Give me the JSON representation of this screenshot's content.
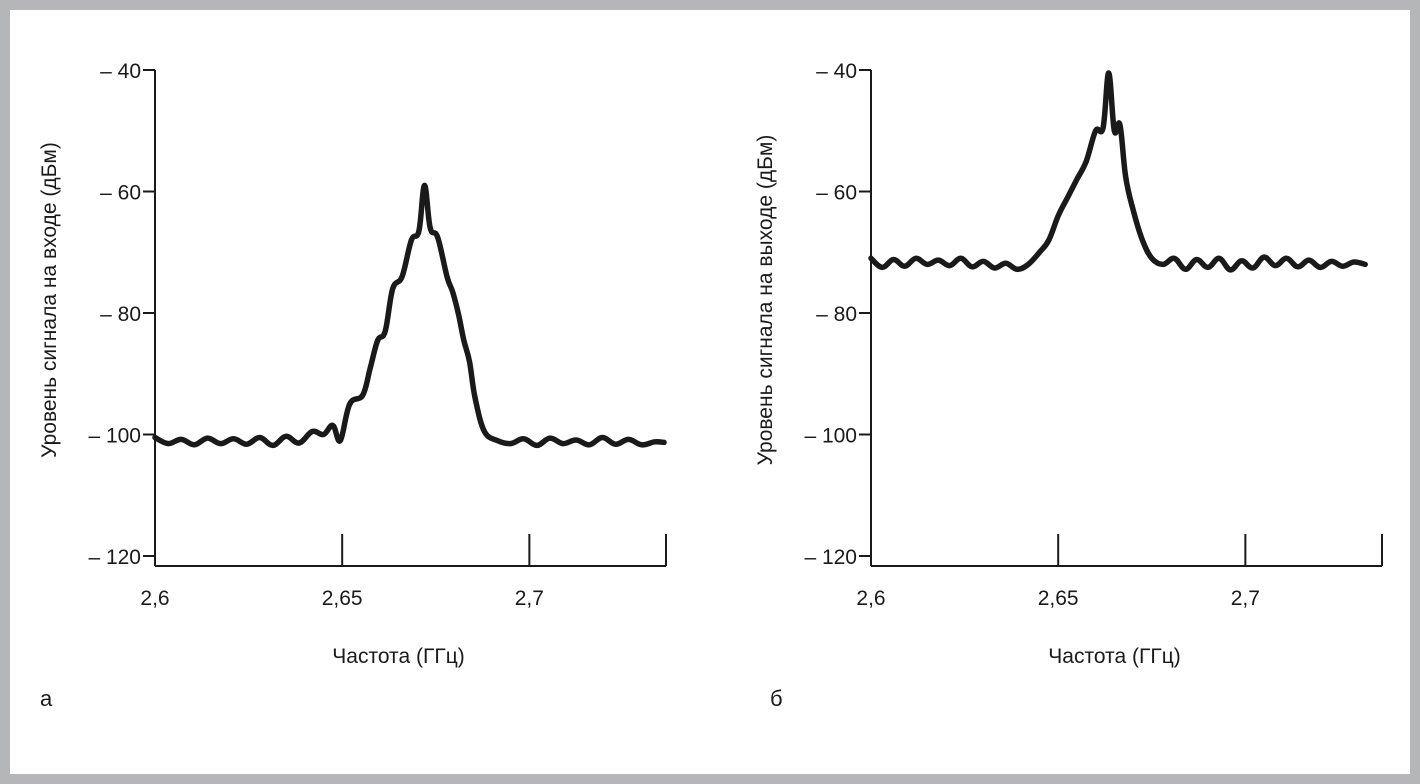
{
  "figure": {
    "panels": [
      {
        "letter": "а"
      },
      {
        "letter": "б"
      }
    ]
  },
  "chart_data": [
    {
      "type": "line",
      "title": "",
      "xlabel": "Частота (ГГц)",
      "ylabel": "Уровень сигнала на входе (дБм)",
      "xlim": [
        2.6,
        2.7365
      ],
      "ylim": [
        -120,
        -40
      ],
      "xticks": [
        2.6,
        2.65,
        2.7
      ],
      "xtick_labels": [
        "2,6",
        "2,65",
        "2,7"
      ],
      "yticks": [
        -40,
        -60,
        -80,
        -100,
        -120
      ],
      "ytick_labels": [
        "– 40",
        "– 60",
        "– 80",
        "– 100",
        "– 120"
      ],
      "grid": false,
      "legend": "none",
      "color": "#1a1a1a",
      "series": [
        {
          "x": [
            2.6,
            2.6035,
            2.607,
            2.6105,
            2.614,
            2.6175,
            2.621,
            2.6245,
            2.628,
            2.6315,
            2.635,
            2.6385,
            2.642,
            2.645,
            2.6475,
            2.6495,
            2.652,
            2.6555,
            2.6575,
            2.6595,
            2.6615,
            2.6635,
            2.666,
            2.6685,
            2.6705,
            2.672,
            2.6735,
            2.6755,
            2.678,
            2.6795,
            2.681,
            2.6825,
            2.684,
            2.6855,
            2.688,
            2.6915,
            2.695,
            2.6985,
            2.702,
            2.7055,
            2.709,
            2.7125,
            2.716,
            2.7195,
            2.723,
            2.7265,
            2.73,
            2.7335,
            2.736
          ],
          "y": [
            -100.5,
            -101.5,
            -100.8,
            -101.7,
            -100.6,
            -101.5,
            -100.7,
            -101.6,
            -100.5,
            -101.8,
            -100.3,
            -101.4,
            -99.5,
            -100.0,
            -98.5,
            -101.0,
            -95.0,
            -93.5,
            -89.0,
            -84.5,
            -83.0,
            -76.0,
            -74.0,
            -68.0,
            -66.5,
            -59.0,
            -66.0,
            -67.5,
            -74.0,
            -76.5,
            -80.0,
            -84.5,
            -88.0,
            -94.0,
            -99.5,
            -101.0,
            -101.5,
            -100.7,
            -101.8,
            -100.6,
            -101.5,
            -100.9,
            -101.7,
            -100.5,
            -101.6,
            -100.8,
            -101.7,
            -101.2,
            -101.3
          ]
        }
      ]
    },
    {
      "type": "line",
      "title": "",
      "xlabel": "Частота (ГГц)",
      "ylabel": "Уровень сигнала на выходе (дБм)",
      "xlim": [
        2.6,
        2.7365
      ],
      "ylim": [
        -120,
        -40
      ],
      "xticks": [
        2.6,
        2.65,
        2.7
      ],
      "xtick_labels": [
        "2,6",
        "2,65",
        "2,7"
      ],
      "yticks": [
        -40,
        -60,
        -80,
        -100,
        -120
      ],
      "ytick_labels": [
        "– 40",
        "– 60",
        "– 80",
        "– 100",
        "– 120"
      ],
      "grid": false,
      "legend": "none",
      "color": "#1a1a1a",
      "series": [
        {
          "x": [
            2.6,
            2.603,
            2.606,
            2.609,
            2.612,
            2.615,
            2.618,
            2.621,
            2.624,
            2.627,
            2.63,
            2.633,
            2.636,
            2.639,
            2.642,
            2.645,
            2.6475,
            2.65,
            2.6525,
            2.655,
            2.6575,
            2.66,
            2.662,
            2.6635,
            2.665,
            2.6665,
            2.668,
            2.67,
            2.6725,
            2.675,
            2.678,
            2.681,
            2.684,
            2.687,
            2.69,
            2.693,
            2.696,
            2.699,
            2.702,
            2.705,
            2.708,
            2.711,
            2.714,
            2.717,
            2.72,
            2.723,
            2.726,
            2.729,
            2.732
          ],
          "y": [
            -71.0,
            -72.5,
            -71.2,
            -72.3,
            -71.0,
            -72.0,
            -71.3,
            -72.2,
            -71.0,
            -72.4,
            -71.5,
            -72.6,
            -71.8,
            -72.8,
            -72.0,
            -70.0,
            -68.0,
            -64.0,
            -61.0,
            -58.0,
            -55.0,
            -50.0,
            -49.5,
            -40.5,
            -50.0,
            -49.0,
            -57.5,
            -63.0,
            -68.0,
            -71.0,
            -72.0,
            -71.0,
            -72.8,
            -71.2,
            -72.5,
            -71.0,
            -72.9,
            -71.4,
            -72.6,
            -70.8,
            -72.2,
            -71.0,
            -72.4,
            -71.3,
            -72.5,
            -71.5,
            -72.3,
            -71.6,
            -72.0
          ]
        }
      ]
    }
  ]
}
